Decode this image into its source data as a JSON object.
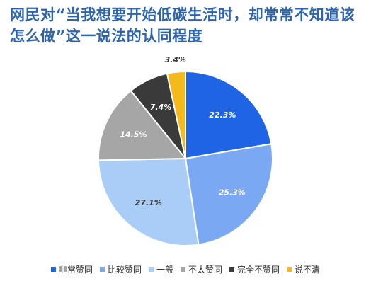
{
  "chart_data": {
    "type": "pie",
    "title": "网民对“当我想要开始低碳生活时，却常常不知道该怎么做”这一说法的认同程度",
    "slices": [
      {
        "label": "非常赞同",
        "value": 22.3,
        "value_label": "22.3%",
        "color": "#2064e6",
        "label_color": "#ffffff"
      },
      {
        "label": "比较赞同",
        "value": 25.3,
        "value_label": "25.3%",
        "color": "#7aa8f2",
        "label_color": "#ffffff"
      },
      {
        "label": "一般",
        "value": 27.1,
        "value_label": "27.1%",
        "color": "#a9cdf6",
        "label_color": "#333333"
      },
      {
        "label": "不太赞同",
        "value": 14.5,
        "value_label": "14.5%",
        "color": "#a6a6a6",
        "label_color": "#ffffff"
      },
      {
        "label": "完全不赞同",
        "value": 7.4,
        "value_label": "7.4%",
        "color": "#3a3a3a",
        "label_color": "#ffffff"
      },
      {
        "label": "说不清",
        "value": 3.4,
        "value_label": "3.4%",
        "color": "#f6b91c",
        "label_color": "#333333"
      }
    ],
    "start_angle_deg": 0,
    "direction": "clockwise",
    "legend_position": "bottom"
  }
}
